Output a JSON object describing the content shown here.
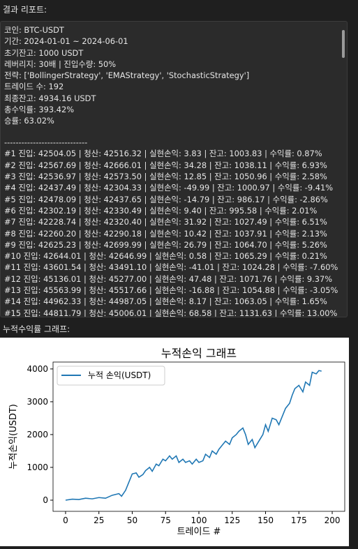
{
  "report_label": "결과 리포트:",
  "report": {
    "lines": [
      "코인: BTC-USDT",
      "기간: 2024-01-01 ~ 2024-06-01",
      "초기잔고: 1000 USDT",
      "레버리지: 30배 | 진입수량: 50%",
      "전략: ['BollingerStrategy', 'EMAStrategy', 'StochasticStrategy']",
      "트레이드 수: 192",
      "최종잔고: 4934.16 USDT",
      "총수익률: 393.42%",
      "승률: 63.02%",
      "-----------------------------",
      "#1 진입: 42504.05 | 청산: 42516.32 | 실현손익: 3.83 | 잔고: 1003.83 | 수익률: 0.87%",
      "#2 진입: 42567.69 | 청산: 42666.01 | 실현손익: 34.28 | 잔고: 1038.11 | 수익률: 6.93%",
      "#3 진입: 42536.97 | 청산: 42573.50 | 실현손익: 12.85 | 잔고: 1050.96 | 수익률: 2.58%",
      "#4 진입: 42437.49 | 청산: 42304.33 | 실현손익: -49.99 | 잔고: 1000.97 | 수익률: -9.41%",
      "#5 진입: 42478.09 | 청산: 42437.65 | 실현손익: -14.79 | 잔고: 986.17 | 수익률: -2.86%",
      "#6 진입: 42302.19 | 청산: 42330.49 | 실현손익: 9.40 | 잔고: 995.58 | 수익률: 2.01%",
      "#7 진입: 42228.74 | 청산: 42320.40 | 실현손익: 31.92 | 잔고: 1027.49 | 수익률: 6.51%",
      "#8 진입: 42260.20 | 청산: 42290.18 | 실현손익: 10.42 | 잔고: 1037.91 | 수익률: 2.13%",
      "#9 진입: 42625.23 | 청산: 42699.99 | 실현손익: 26.79 | 잔고: 1064.70 | 수익률: 5.26%",
      "#10 진입: 42644.01 | 청산: 42646.99 | 실현손익: 0.58 | 잔고: 1065.29 | 수익률: 0.21%",
      "#11 진입: 43601.54 | 청산: 43491.10 | 실현손익: -41.01 | 잔고: 1024.28 | 수익률: -7.60%",
      "#12 진입: 45136.01 | 청산: 45277.00 | 실현손익: 47.48 | 잔고: 1071.76 | 수익률: 9.37%",
      "#13 진입: 45563.99 | 청산: 45517.66 | 실현손익: -16.88 | 잔고: 1054.88 | 수익률: -3.05%",
      "#14 진입: 44962.33 | 청산: 44987.05 | 실현손익: 8.17 | 잔고: 1063.05 | 수익률: 1.65%",
      "#15 진입: 44811.79 | 청산: 45006.01 | 실현손익: 68.58 | 잔고: 1131.63 | 수익률: 13.00%"
    ]
  },
  "graph_label": "누적수익률 그래프:",
  "chart_data": {
    "type": "line",
    "title": "누적손익 그래프",
    "x_label": "트레이드 #",
    "y_label": "누적손익(USDT)",
    "legend": "upper left",
    "grid": false,
    "series": [
      {
        "name": "누적 손익(USDT)",
        "color": "#1f77b4",
        "x": [
          0,
          5,
          10,
          15,
          20,
          25,
          30,
          35,
          40,
          42,
          45,
          48,
          50,
          53,
          55,
          58,
          60,
          63,
          65,
          68,
          70,
          73,
          75,
          78,
          80,
          83,
          85,
          88,
          90,
          93,
          95,
          98,
          100,
          103,
          105,
          108,
          110,
          113,
          115,
          118,
          120,
          123,
          125,
          128,
          130,
          133,
          135,
          137,
          140,
          142,
          145,
          148,
          150,
          152,
          155,
          158,
          160,
          163,
          165,
          168,
          170,
          172,
          175,
          178,
          180,
          183,
          185,
          188,
          190,
          192
        ],
        "values": [
          0,
          30,
          20,
          60,
          40,
          80,
          60,
          150,
          200,
          120,
          300,
          600,
          800,
          830,
          700,
          780,
          900,
          1000,
          880,
          1100,
          1050,
          1250,
          1200,
          1350,
          1250,
          1350,
          1150,
          1250,
          1150,
          1200,
          1100,
          1250,
          1150,
          1200,
          1400,
          1300,
          1500,
          1400,
          1550,
          1700,
          1800,
          1700,
          1900,
          2000,
          2100,
          2200,
          2000,
          1700,
          1850,
          1600,
          1800,
          2000,
          2300,
          2100,
          2500,
          2450,
          2300,
          2600,
          2800,
          2950,
          3200,
          3400,
          3500,
          3300,
          3600,
          3500,
          3900,
          3850,
          3950,
          3934.16
        ]
      }
    ],
    "xlim": [
      -9.4,
      209.4
    ],
    "ylim": [
      -340,
      4210
    ],
    "xticks": [
      0,
      25,
      50,
      75,
      100,
      125,
      150,
      175,
      200
    ],
    "yticks": [
      0,
      1000,
      2000,
      3000,
      4000
    ]
  }
}
